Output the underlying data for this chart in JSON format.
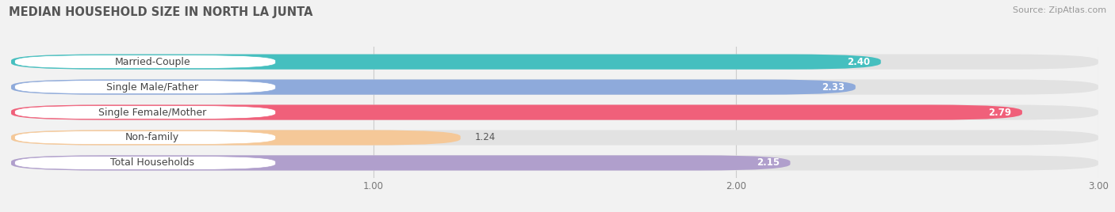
{
  "title": "MEDIAN HOUSEHOLD SIZE IN NORTH LA JUNTA",
  "source": "Source: ZipAtlas.com",
  "categories": [
    "Married-Couple",
    "Single Male/Father",
    "Single Female/Mother",
    "Non-family",
    "Total Households"
  ],
  "values": [
    2.4,
    2.33,
    2.79,
    1.24,
    2.15
  ],
  "bar_colors": [
    "#45bfbf",
    "#8eaadb",
    "#f0607a",
    "#f5c898",
    "#b09fcc"
  ],
  "background_color": "#f2f2f2",
  "bar_bg_color": "#e2e2e2",
  "xlim": [
    0,
    3.0
  ],
  "xticks": [
    1.0,
    2.0,
    3.0
  ],
  "title_fontsize": 10.5,
  "label_fontsize": 9,
  "value_fontsize": 8.5,
  "source_fontsize": 8
}
